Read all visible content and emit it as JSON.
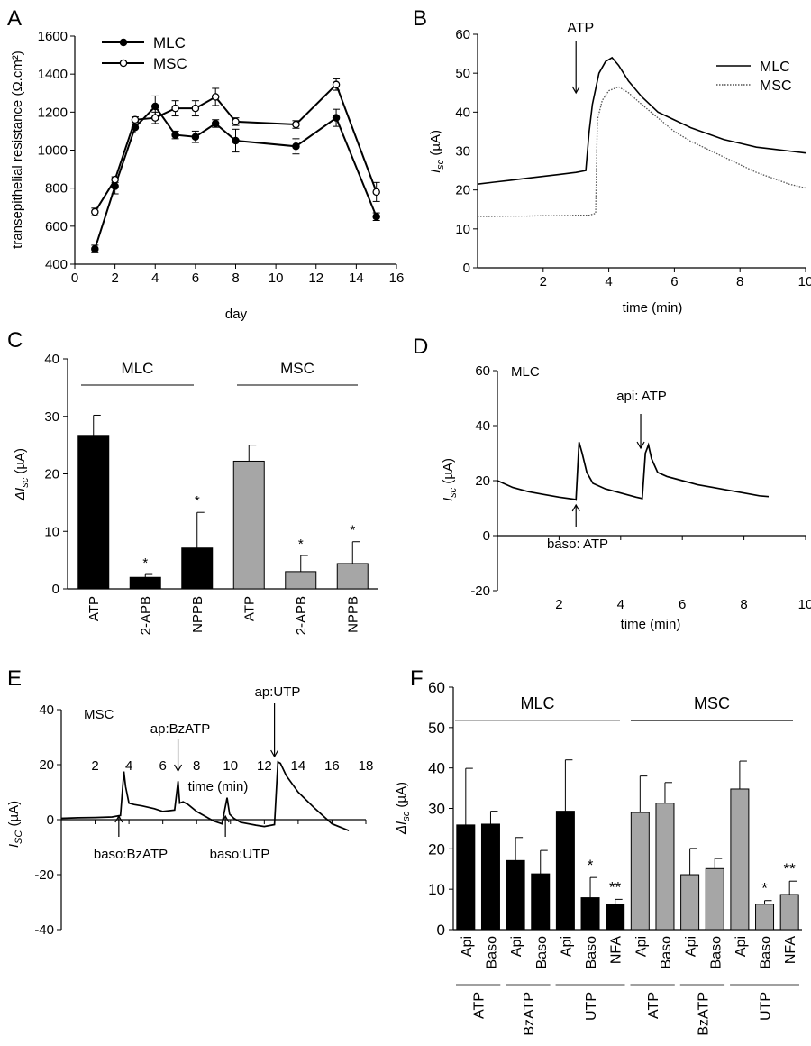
{
  "panels": {
    "A": {
      "letter": "A"
    },
    "B": {
      "letter": "B"
    },
    "C": {
      "letter": "C"
    },
    "D": {
      "letter": "D"
    },
    "E": {
      "letter": "E"
    },
    "F": {
      "letter": "F"
    }
  },
  "chart_data": [
    {
      "id": "A",
      "type": "line",
      "xlabel": "day",
      "ylabel": "transepithelial resistance (Ω.cm²)",
      "xlim": [
        0,
        16
      ],
      "ylim": [
        400,
        1600
      ],
      "xticks": [
        0,
        2,
        4,
        6,
        8,
        10,
        12,
        14,
        16
      ],
      "yticks": [
        400,
        600,
        800,
        1000,
        1200,
        1400,
        1600
      ],
      "legend": "top-left",
      "x": [
        1,
        2,
        3,
        4,
        5,
        6,
        7,
        8,
        11,
        13,
        15
      ],
      "series": [
        {
          "name": "MLC",
          "marker": "filled",
          "values": [
            480,
            810,
            1120,
            1230,
            1080,
            1070,
            1140,
            1050,
            1020,
            1170,
            650
          ],
          "errors": [
            20,
            40,
            30,
            55,
            20,
            30,
            20,
            60,
            40,
            45,
            20
          ]
        },
        {
          "name": "MSC",
          "marker": "open",
          "values": [
            675,
            845,
            1160,
            1170,
            1220,
            1220,
            1280,
            1150,
            1135,
            1345,
            780
          ],
          "errors": [
            20,
            15,
            15,
            30,
            40,
            40,
            45,
            20,
            20,
            30,
            50
          ]
        }
      ]
    },
    {
      "id": "B",
      "type": "line",
      "xlabel": "time (min)",
      "ylabel_main": "I",
      "ylabel_sub": "sc",
      "ylabel_unit": " (µA)",
      "xlim": [
        0,
        10
      ],
      "ylim": [
        0,
        60
      ],
      "xticks": [
        2,
        4,
        6,
        8,
        10
      ],
      "yticks": [
        0,
        10,
        20,
        30,
        40,
        50,
        60
      ],
      "legend": "top-right",
      "annotations": [
        {
          "text": "ATP",
          "x": 3.0
        }
      ],
      "series": [
        {
          "name": "MLC",
          "style": "solid",
          "x": [
            0,
            0.5,
            1,
            1.5,
            2,
            2.5,
            3,
            3.3,
            3.4,
            3.5,
            3.7,
            3.9,
            4.1,
            4.3,
            4.6,
            5,
            5.5,
            6,
            6.5,
            7,
            7.5,
            8,
            8.5,
            9,
            9.5,
            10
          ],
          "values": [
            21.5,
            22,
            22.5,
            23,
            23.5,
            24,
            24.5,
            25,
            35,
            42,
            50,
            53,
            54,
            52,
            48,
            44,
            40,
            38,
            36,
            34.5,
            33,
            32,
            31,
            30.5,
            30,
            29.5
          ]
        },
        {
          "name": "MSC",
          "style": "dotted",
          "x": [
            0,
            0.5,
            1,
            1.5,
            2,
            2.5,
            3,
            3.4,
            3.6,
            3.65,
            3.8,
            4,
            4.3,
            4.6,
            5,
            5.5,
            6,
            6.5,
            7,
            7.5,
            8,
            8.5,
            9,
            9.5,
            10
          ],
          "values": [
            13.2,
            13.2,
            13.3,
            13.3,
            13.4,
            13.4,
            13.5,
            13.5,
            14,
            38,
            43,
            45.5,
            46.5,
            45,
            42,
            38.5,
            35,
            32.5,
            30.5,
            28.5,
            26.5,
            24.5,
            23,
            21.5,
            20.5
          ]
        }
      ]
    },
    {
      "id": "C",
      "type": "bar",
      "ylabel_main": "ΔI",
      "ylabel_sub": "sc",
      "ylabel_unit": " (µA)",
      "ylim": [
        0,
        40
      ],
      "yticks": [
        0,
        10,
        20,
        30,
        40
      ],
      "groups": [
        {
          "name": "MLC"
        },
        {
          "name": "MSC"
        }
      ],
      "categories": [
        "ATP",
        "2-APB",
        "NPPB",
        "ATP",
        "2-APB",
        "NPPB"
      ],
      "values": [
        26.7,
        2.0,
        7.1,
        22.2,
        3.0,
        4.4
      ],
      "errors": [
        3.5,
        0.5,
        6.2,
        2.8,
        2.8,
        3.8
      ],
      "colors": [
        "#000000",
        "#000000",
        "#000000",
        "#a6a6a6",
        "#a6a6a6",
        "#a6a6a6"
      ],
      "significance": [
        "",
        "*",
        "*",
        "",
        "*",
        "*"
      ]
    },
    {
      "id": "D",
      "type": "line",
      "inset_label": "MLC",
      "xlabel": "time (min)",
      "ylabel_main": "I",
      "ylabel_sub": "sc",
      "ylabel_unit": " (µA)",
      "xlim": [
        0,
        10
      ],
      "ylim": [
        -20,
        60
      ],
      "xticks": [
        2,
        4,
        6,
        8,
        10
      ],
      "yticks": [
        -20,
        0,
        20,
        40,
        60
      ],
      "annotations": [
        {
          "text": "baso: ATP",
          "x": 2.55
        },
        {
          "text": "api: ATP",
          "x": 4.65
        }
      ],
      "series": [
        {
          "name": "",
          "x": [
            0,
            0.5,
            1,
            1.5,
            2,
            2.5,
            2.55,
            2.65,
            2.75,
            2.9,
            3.1,
            3.5,
            4,
            4.5,
            4.7,
            4.8,
            4.9,
            5.0,
            5.2,
            5.5,
            6,
            6.5,
            7,
            7.5,
            8,
            8.5,
            8.8
          ],
          "values": [
            20,
            17.5,
            16,
            15,
            14,
            13.2,
            13,
            34,
            30,
            23,
            19,
            17,
            15.5,
            14,
            13.5,
            30,
            33,
            28,
            23,
            21.5,
            20,
            18.5,
            17.5,
            16.5,
            15.5,
            14.5,
            14.2
          ]
        }
      ]
    },
    {
      "id": "E",
      "type": "line",
      "inset_label": "MSC",
      "xlabel": "time (min)",
      "ylabel_main": "I",
      "ylabel_sub": "SC",
      "ylabel_unit": " (µA)",
      "xlim": [
        0,
        18
      ],
      "ylim": [
        -40,
        40
      ],
      "xticks": [
        2,
        4,
        6,
        8,
        10,
        12,
        14,
        16,
        18
      ],
      "yticks": [
        -40,
        -20,
        0,
        20,
        40
      ],
      "annotations": [
        {
          "text": "baso:BzATP",
          "x": 3.4
        },
        {
          "text": "ap:BzATP",
          "x": 6.9
        },
        {
          "text": "baso:UTP",
          "x": 9.7
        },
        {
          "text": "ap:UTP",
          "x": 12.6
        }
      ],
      "series": [
        {
          "name": "",
          "x": [
            0,
            1,
            2,
            3,
            3.5,
            3.7,
            3.8,
            4.0,
            4.3,
            4.8,
            5.5,
            6,
            6.7,
            6.9,
            7.0,
            7.2,
            7.5,
            8,
            9,
            9.5,
            9.8,
            9.95,
            10.2,
            10.6,
            11.5,
            12,
            12.6,
            12.8,
            12.95,
            13.3,
            14,
            15,
            16,
            17
          ],
          "values": [
            0.5,
            0.7,
            0.8,
            1,
            1.5,
            17.5,
            12,
            6,
            5.5,
            5,
            4,
            3,
            3.5,
            14,
            6,
            6.5,
            5.5,
            3,
            -0.5,
            -1.5,
            8,
            2,
            0.5,
            -1,
            -2,
            -2.5,
            -1.8,
            21,
            20.5,
            16,
            10,
            4,
            -1.5,
            -4
          ]
        }
      ]
    },
    {
      "id": "F",
      "type": "bar",
      "ylabel_main": "ΔI",
      "ylabel_sub": "sc",
      "ylabel_unit": " (µA)",
      "ylim": [
        0,
        60
      ],
      "yticks": [
        0,
        10,
        20,
        30,
        40,
        50,
        60
      ],
      "groups": [
        {
          "name": "MLC"
        },
        {
          "name": "MSC"
        }
      ],
      "categories": [
        "Api",
        "Baso",
        "Api",
        "Baso",
        "Api",
        "Baso",
        "NFA",
        "Api",
        "Baso",
        "Api",
        "Baso",
        "Api",
        "Baso",
        "NFA"
      ],
      "subgroups": [
        "ATP",
        "BzATP",
        "UTP",
        "ATP",
        "BzATP",
        "UTP"
      ],
      "values": [
        25.9,
        26.1,
        17.1,
        13.8,
        29.3,
        7.9,
        6.3,
        29.0,
        31.3,
        13.6,
        15.1,
        34.8,
        6.3,
        8.7
      ],
      "errors": [
        14.0,
        3.2,
        5.7,
        5.8,
        12.7,
        5.0,
        1.2,
        9.0,
        5.1,
        6.5,
        2.5,
        6.9,
        0.9,
        3.3
      ],
      "colors": [
        "#000000",
        "#000000",
        "#000000",
        "#000000",
        "#000000",
        "#000000",
        "#000000",
        "#a6a6a6",
        "#a6a6a6",
        "#a6a6a6",
        "#a6a6a6",
        "#a6a6a6",
        "#a6a6a6",
        "#a6a6a6"
      ],
      "significance": [
        "",
        "",
        "",
        "",
        "",
        "*",
        "**",
        "",
        "",
        "",
        "",
        "",
        "*",
        "**"
      ]
    }
  ]
}
